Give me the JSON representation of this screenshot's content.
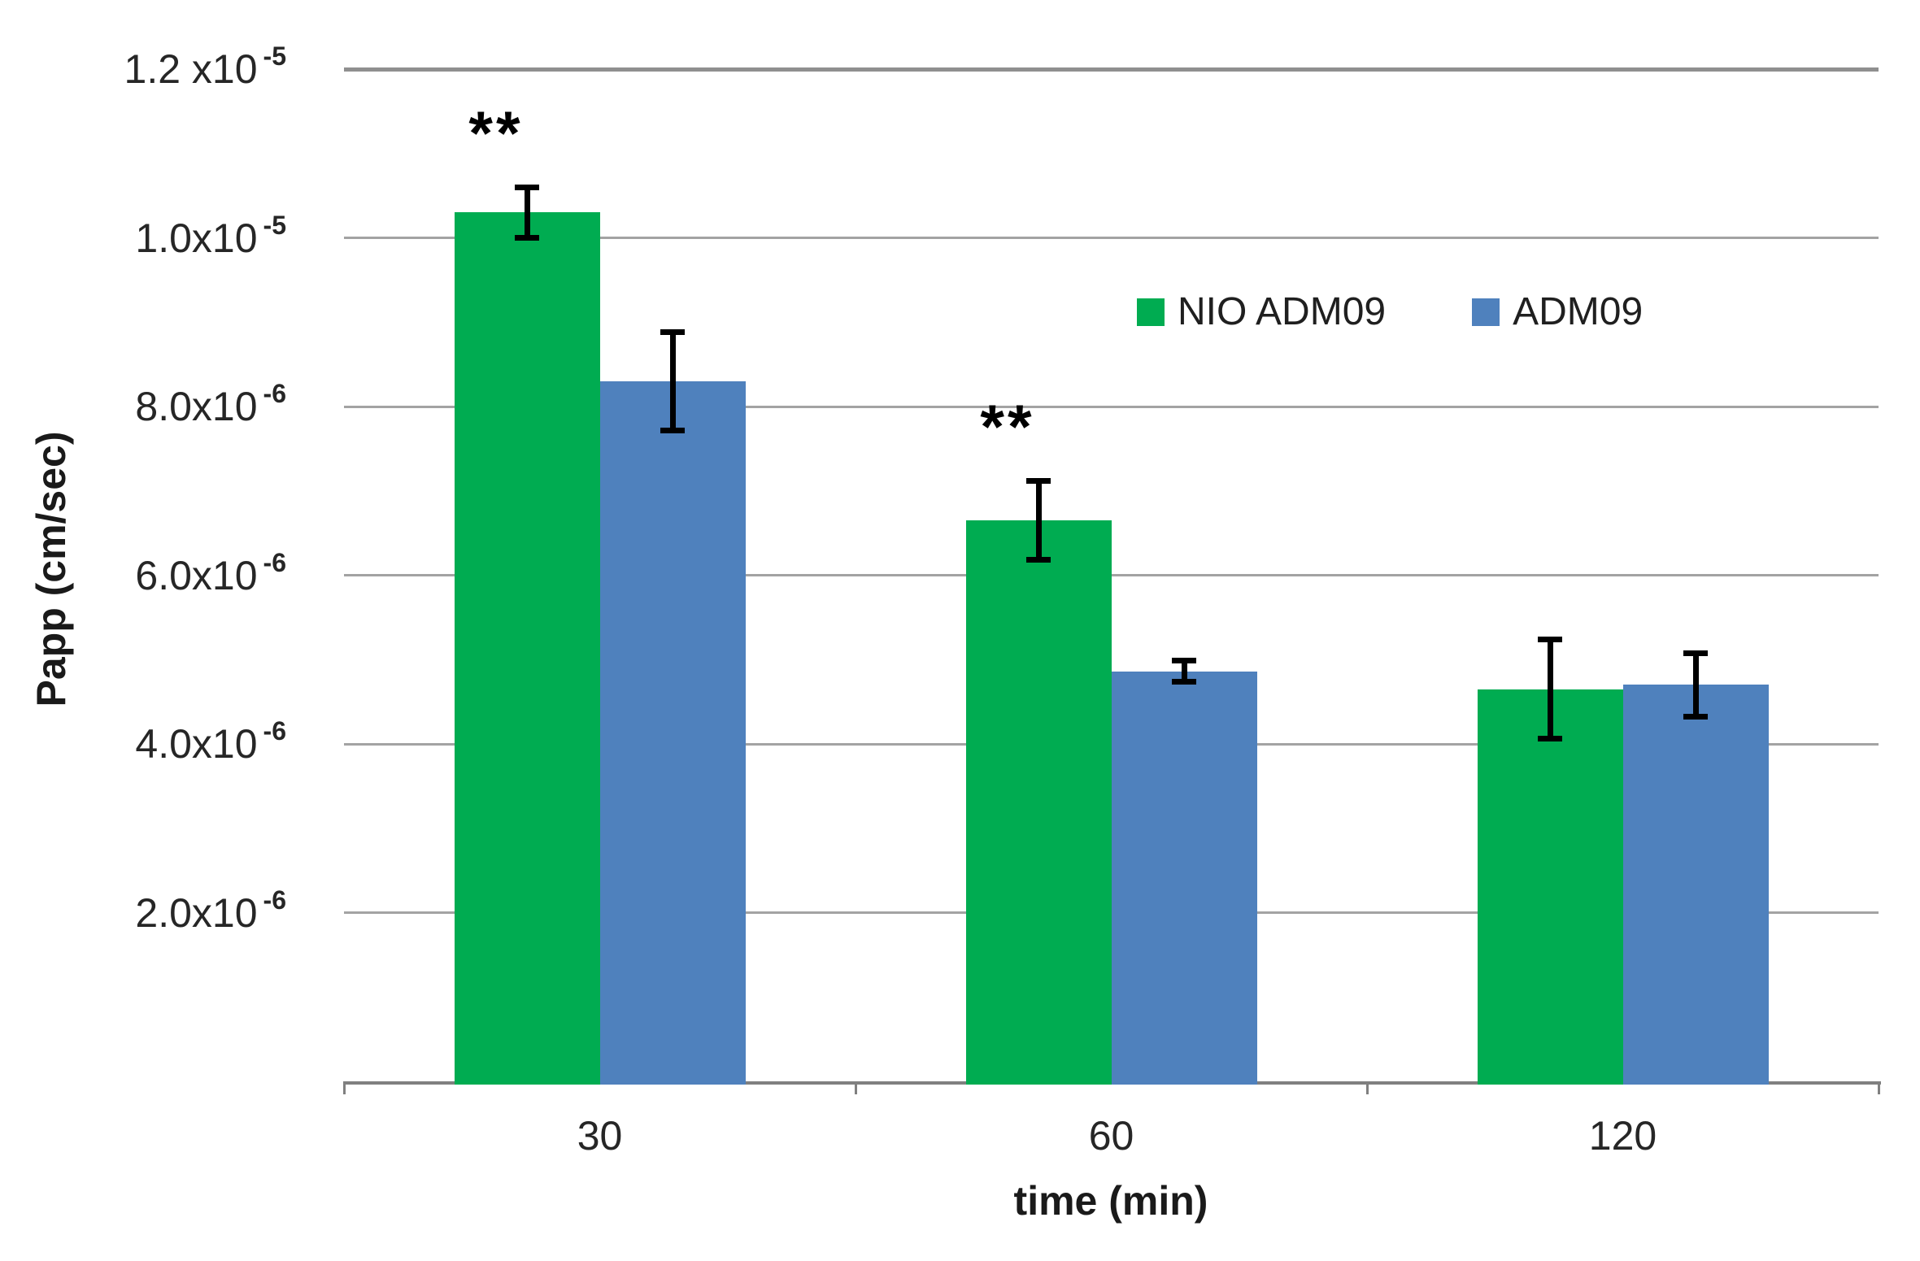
{
  "chart": {
    "y_axis": {
      "title": "Papp (cm/sec)",
      "tick_labels": [
        {
          "mantissa": "1.2 x10",
          "exp": "-5",
          "value": 1.2e-05
        },
        {
          "mantissa": "1.0x10",
          "exp": "-5",
          "value": 1e-05
        },
        {
          "mantissa": "8.0x10",
          "exp": "-6",
          "value": 8e-06
        },
        {
          "mantissa": "6.0x10",
          "exp": "-6",
          "value": 6e-06
        },
        {
          "mantissa": "4.0x10",
          "exp": "-6",
          "value": 4e-06
        },
        {
          "mantissa": "2.0x10",
          "exp": "-6",
          "value": 2e-06
        }
      ]
    },
    "x_axis": {
      "title": "time (min)"
    },
    "colors": {
      "series_green": "#00AC51",
      "series_blue": "#4F81BD",
      "gridline": "#a3a3a3",
      "axis": "#808080",
      "error_bar": "#000000"
    }
  },
  "chart_data": {
    "type": "bar",
    "title": "",
    "xlabel": "time (min)",
    "ylabel": "Papp (cm/sec)",
    "categories": [
      "30",
      "60",
      "120"
    ],
    "series": [
      {
        "name": "NIO ADM09",
        "color": "#00AC51",
        "values": [
          1.03e-05,
          6.65e-06,
          4.65e-06
        ],
        "errors": [
          3.3e-07,
          5e-07,
          6.2e-07
        ]
      },
      {
        "name": "ADM09",
        "color": "#4F81BD",
        "values": [
          8.3e-06,
          4.86e-06,
          4.7e-06
        ],
        "errors": [
          6.2e-07,
          1.6e-07,
          4.1e-07
        ]
      }
    ],
    "annotations": [
      {
        "text": "**",
        "series": "NIO ADM09",
        "category": "30"
      },
      {
        "text": "**",
        "series": "NIO ADM09",
        "category": "60"
      }
    ],
    "ylim": [
      0,
      1.2e-05
    ],
    "grid": "horizontal",
    "legend_position": "upper-right-inside",
    "error_bars": true
  }
}
